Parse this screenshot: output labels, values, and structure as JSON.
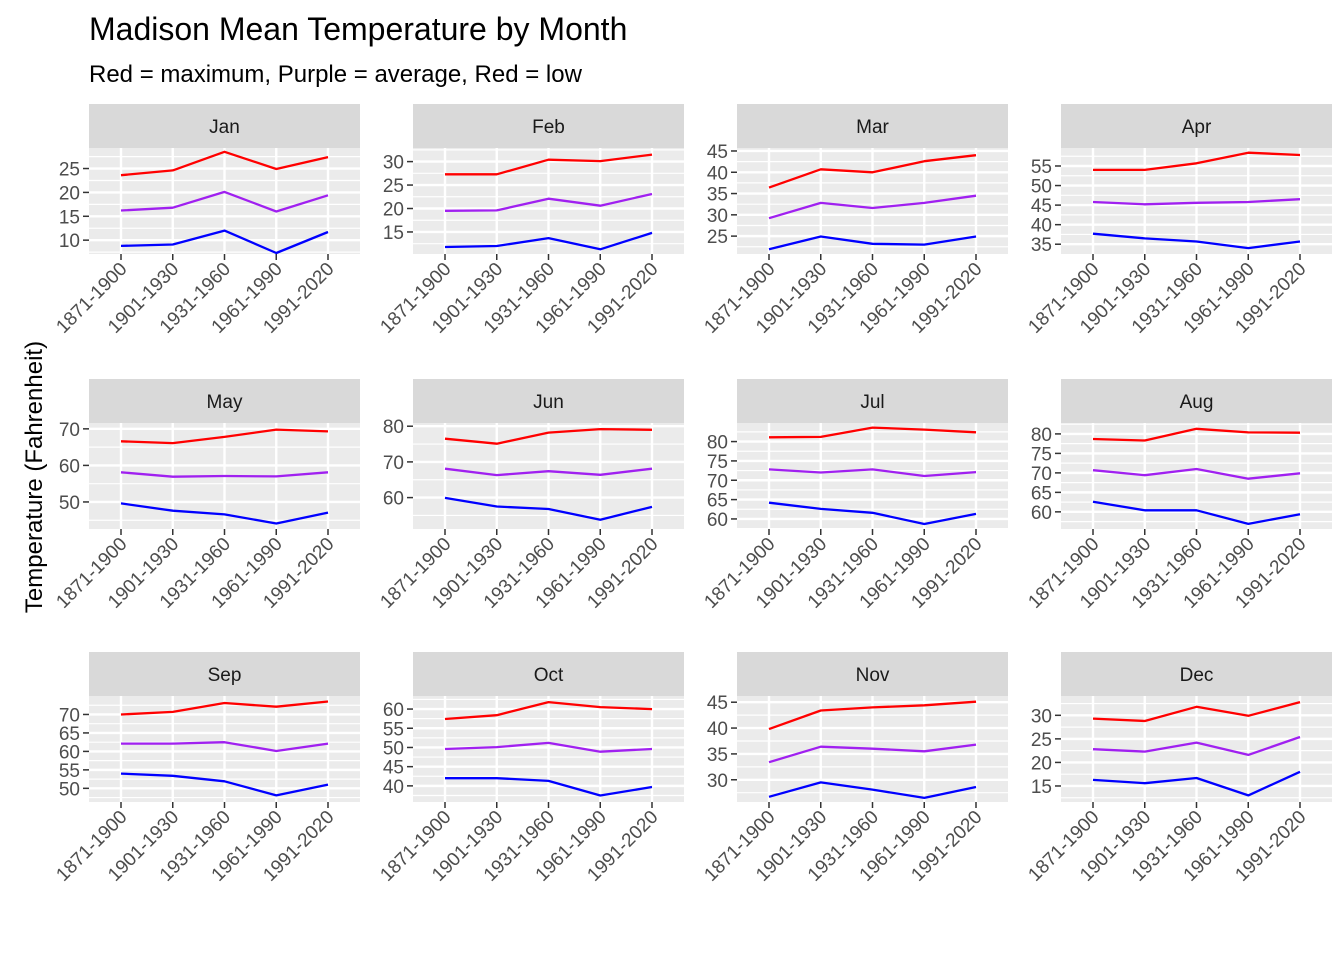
{
  "title": "Madison Mean Temperature by Month",
  "subtitle": "Red = maximum, Purple = average, Red = low",
  "colors": {
    "max": "#ff0000",
    "avg": "#a020f0",
    "low": "#0000ff"
  },
  "chart_data": {
    "type": "line",
    "title": "Madison Mean Temperature by Month",
    "subtitle": "Red = maximum, Purple = average, Red = low",
    "xlabel": "",
    "ylabel": "Temperature (Fahrenheit)",
    "categories": [
      "1871-1900",
      "1901-1930",
      "1931-1960",
      "1961-1990",
      "1991-2020"
    ],
    "grid": true,
    "legend": "none",
    "panels": [
      {
        "month": "Jan",
        "yticks": [
          10,
          15,
          20,
          25
        ],
        "ylim": [
          7.1,
          29.3
        ],
        "series": [
          {
            "values": [
              23.6,
              24.6,
              28.5,
              24.9,
              27.4
            ]
          },
          {
            "values": [
              16.2,
              16.8,
              20.1,
              16.0,
              19.4
            ]
          },
          {
            "values": [
              8.8,
              9.1,
              12.0,
              7.3,
              11.7
            ]
          }
        ]
      },
      {
        "month": "Feb",
        "yticks": [
          15,
          20,
          25,
          30
        ],
        "ylim": [
          10.3,
          32.9
        ],
        "series": [
          {
            "values": [
              27.3,
              27.3,
              30.4,
              30.1,
              31.5
            ]
          },
          {
            "values": [
              19.5,
              19.6,
              22.1,
              20.6,
              23.1
            ]
          },
          {
            "values": [
              11.8,
              12.0,
              13.7,
              11.3,
              14.8
            ]
          }
        ]
      },
      {
        "month": "Mar",
        "yticks": [
          25,
          30,
          35,
          40,
          45
        ],
        "ylim": [
          20.8,
          45.7
        ],
        "series": [
          {
            "values": [
              36.4,
              40.7,
              40.0,
              42.6,
              44.0
            ]
          },
          {
            "values": [
              29.2,
              32.8,
              31.6,
              32.8,
              34.5
            ]
          },
          {
            "values": [
              21.9,
              24.9,
              23.2,
              23.0,
              24.9
            ]
          }
        ]
      },
      {
        "month": "Apr",
        "yticks": [
          35,
          40,
          45,
          50,
          55
        ],
        "ylim": [
          32.5,
          59.6
        ],
        "series": [
          {
            "values": [
              54.0,
              54.0,
              55.7,
              58.4,
              57.8
            ]
          },
          {
            "values": [
              45.8,
              45.2,
              45.6,
              45.8,
              46.5
            ]
          },
          {
            "values": [
              37.7,
              36.5,
              35.7,
              34.0,
              35.7
            ]
          }
        ]
      },
      {
        "month": "May",
        "yticks": [
          50,
          60,
          70
        ],
        "ylim": [
          42.6,
          71.6
        ],
        "series": [
          {
            "values": [
              66.6,
              66.1,
              67.8,
              69.8,
              69.3
            ]
          },
          {
            "values": [
              58.1,
              56.9,
              57.1,
              57.0,
              58.1
            ]
          },
          {
            "values": [
              49.6,
              47.6,
              46.6,
              44.1,
              47.1
            ]
          }
        ]
      },
      {
        "month": "Jun",
        "yticks": [
          60,
          70,
          80
        ],
        "ylim": [
          51.2,
          80.9
        ],
        "series": [
          {
            "values": [
              76.5,
              75.1,
              78.2,
              79.2,
              79.0
            ]
          },
          {
            "values": [
              68.1,
              66.3,
              67.4,
              66.4,
              68.1
            ]
          },
          {
            "values": [
              59.9,
              57.5,
              56.8,
              53.8,
              57.4
            ]
          }
        ]
      },
      {
        "month": "Jul",
        "yticks": [
          60,
          65,
          70,
          75,
          80
        ],
        "ylim": [
          57.4,
          84.8
        ],
        "series": [
          {
            "values": [
              81.1,
              81.2,
              83.6,
              83.1,
              82.4
            ]
          },
          {
            "values": [
              72.8,
              72.0,
              72.8,
              71.1,
              72.1
            ]
          },
          {
            "values": [
              64.2,
              62.6,
              61.6,
              58.7,
              61.3
            ]
          }
        ]
      },
      {
        "month": "Aug",
        "yticks": [
          60,
          65,
          70,
          75,
          80
        ],
        "ylim": [
          55.6,
          82.8
        ],
        "series": [
          {
            "values": [
              78.7,
              78.3,
              81.3,
              80.4,
              80.3
            ]
          },
          {
            "values": [
              70.7,
              69.4,
              71.0,
              68.5,
              69.9
            ]
          },
          {
            "values": [
              62.6,
              60.4,
              60.4,
              56.9,
              59.4
            ]
          }
        ]
      },
      {
        "month": "Sep",
        "yticks": [
          50,
          55,
          60,
          65,
          70
        ],
        "ylim": [
          46.3,
          75.0
        ],
        "series": [
          {
            "values": [
              70.0,
              70.7,
              73.1,
              72.1,
              73.5
            ]
          },
          {
            "values": [
              62.1,
              62.1,
              62.5,
              60.1,
              62.1
            ]
          },
          {
            "values": [
              54.0,
              53.4,
              51.9,
              48.1,
              51.0
            ]
          }
        ]
      },
      {
        "month": "Oct",
        "yticks": [
          40,
          45,
          50,
          55,
          60
        ],
        "ylim": [
          35.8,
          63.4
        ],
        "series": [
          {
            "values": [
              57.4,
              58.4,
              61.8,
              60.5,
              60.0
            ]
          },
          {
            "values": [
              49.6,
              50.1,
              51.2,
              48.9,
              49.6
            ]
          },
          {
            "values": [
              42.0,
              42.0,
              41.3,
              37.5,
              39.7
            ]
          }
        ]
      },
      {
        "month": "Nov",
        "yticks": [
          30,
          35,
          40,
          45
        ],
        "ylim": [
          25.7,
          46.2
        ],
        "series": [
          {
            "values": [
              39.8,
              43.4,
              44.0,
              44.4,
              45.1
            ]
          },
          {
            "values": [
              33.4,
              36.4,
              36.0,
              35.5,
              36.8
            ]
          },
          {
            "values": [
              26.7,
              29.5,
              28.1,
              26.5,
              28.6
            ]
          }
        ]
      },
      {
        "month": "Dec",
        "yticks": [
          15,
          20,
          25,
          30
        ],
        "ylim": [
          11.6,
          34.1
        ],
        "series": [
          {
            "values": [
              29.3,
              28.8,
              31.8,
              29.9,
              32.8
            ]
          },
          {
            "values": [
              22.8,
              22.3,
              24.2,
              21.6,
              25.4
            ]
          },
          {
            "values": [
              16.3,
              15.6,
              16.7,
              13.0,
              18.0
            ]
          }
        ]
      }
    ]
  }
}
